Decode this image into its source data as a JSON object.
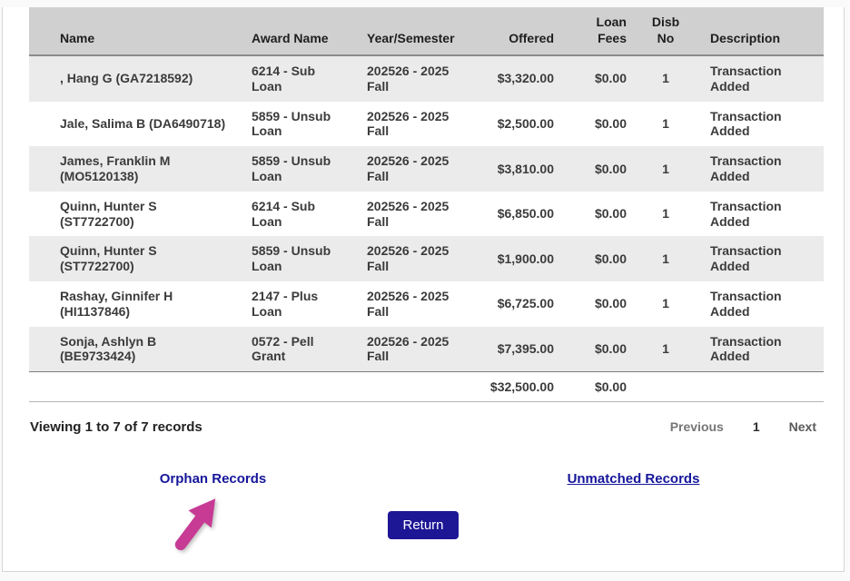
{
  "table": {
    "columns": [
      "Name",
      "Award Name",
      "Year/Semester",
      "Offered",
      "Loan Fees",
      "Disb No",
      "Description"
    ],
    "rows": [
      [
        ", Hang G (GA7218592)",
        "6214 - Sub Loan",
        "202526 - 2025 Fall",
        "$3,320.00",
        "$0.00",
        "1",
        "Transaction Added"
      ],
      [
        "Jale, Salima B (DA6490718)",
        "5859 - Unsub Loan",
        "202526 - 2025 Fall",
        "$2,500.00",
        "$0.00",
        "1",
        "Transaction Added"
      ],
      [
        "James, Franklin M (MO5120138)",
        "5859 - Unsub Loan",
        "202526 - 2025 Fall",
        "$3,810.00",
        "$0.00",
        "1",
        "Transaction Added"
      ],
      [
        "Quinn, Hunter S (ST7722700)",
        "6214 - Sub Loan",
        "202526 - 2025 Fall",
        "$6,850.00",
        "$0.00",
        "1",
        "Transaction Added"
      ],
      [
        "Quinn, Hunter S (ST7722700)",
        "5859 - Unsub Loan",
        "202526 - 2025 Fall",
        "$1,900.00",
        "$0.00",
        "1",
        "Transaction Added"
      ],
      [
        "Rashay, Ginnifer H (HI1137846)",
        "2147 - Plus Loan",
        "202526 - 2025 Fall",
        "$6,725.00",
        "$0.00",
        "1",
        "Transaction Added"
      ],
      [
        "Sonja, Ashlyn B (BE9733424)",
        "0572 - Pell Grant",
        "202526 - 2025 Fall",
        "$7,395.00",
        "$0.00",
        "1",
        "Transaction Added"
      ]
    ],
    "total_offered": "$32,500.00",
    "total_loan_fees": "$0.00"
  },
  "pagination": {
    "summary": "Viewing 1 to 7 of 7 records",
    "previous_label": "Previous",
    "current_page": "1",
    "next_label": "Next"
  },
  "links": {
    "orphan_label": "Orphan Records",
    "unmatched_label": "Unmatched Records"
  },
  "buttons": {
    "return_label": "Return"
  },
  "colors": {
    "header_bg": "#d0d0d0",
    "row_alt_bg": "#ebebeb",
    "link_navy": "#16169b",
    "button_bg": "#1d1695",
    "arrow_pink": "#c73b95"
  }
}
